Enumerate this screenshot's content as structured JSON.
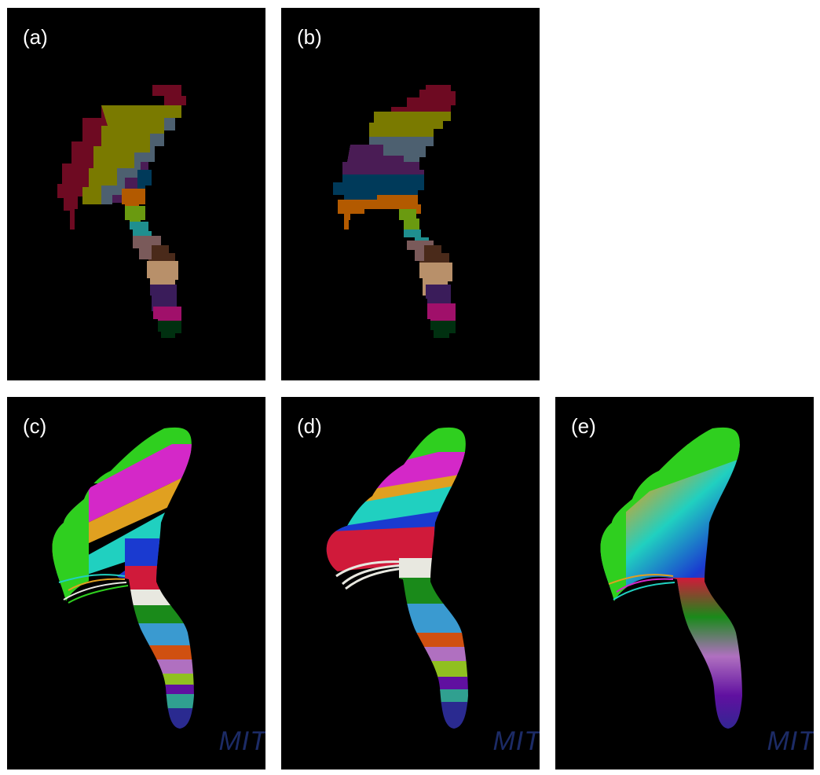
{
  "panels": {
    "a": {
      "label": "(a)"
    },
    "b": {
      "label": "(b)"
    },
    "c": {
      "label": "(c)",
      "watermark": "MIT"
    },
    "d": {
      "label": "(d)",
      "watermark": "MIT"
    },
    "e": {
      "label": "(e)",
      "watermark": "MIT"
    }
  },
  "colors": {
    "background": "#000000",
    "watermark": "#1c2b66",
    "parcel": [
      "#6e0a22",
      "#7a7a00",
      "#4d6070",
      "#4a1c55",
      "#003a5a",
      "#b35a00",
      "#6a9a10",
      "#1f8f8f",
      "#7a5a5a",
      "#4a2a1a",
      "#b8906a",
      "#3a1c5a",
      "#a0106a",
      "#003010"
    ],
    "fiber": [
      "#2fcf1f",
      "#d428c8",
      "#e0a020",
      "#20d0c0",
      "#1a3ad0",
      "#d01a3a",
      "#e8e8e0",
      "#1a8a1a",
      "#3a9ad0",
      "#d05010",
      "#b070c0",
      "#90c020",
      "#6010a0",
      "#30a090",
      "#2a2a90"
    ]
  }
}
